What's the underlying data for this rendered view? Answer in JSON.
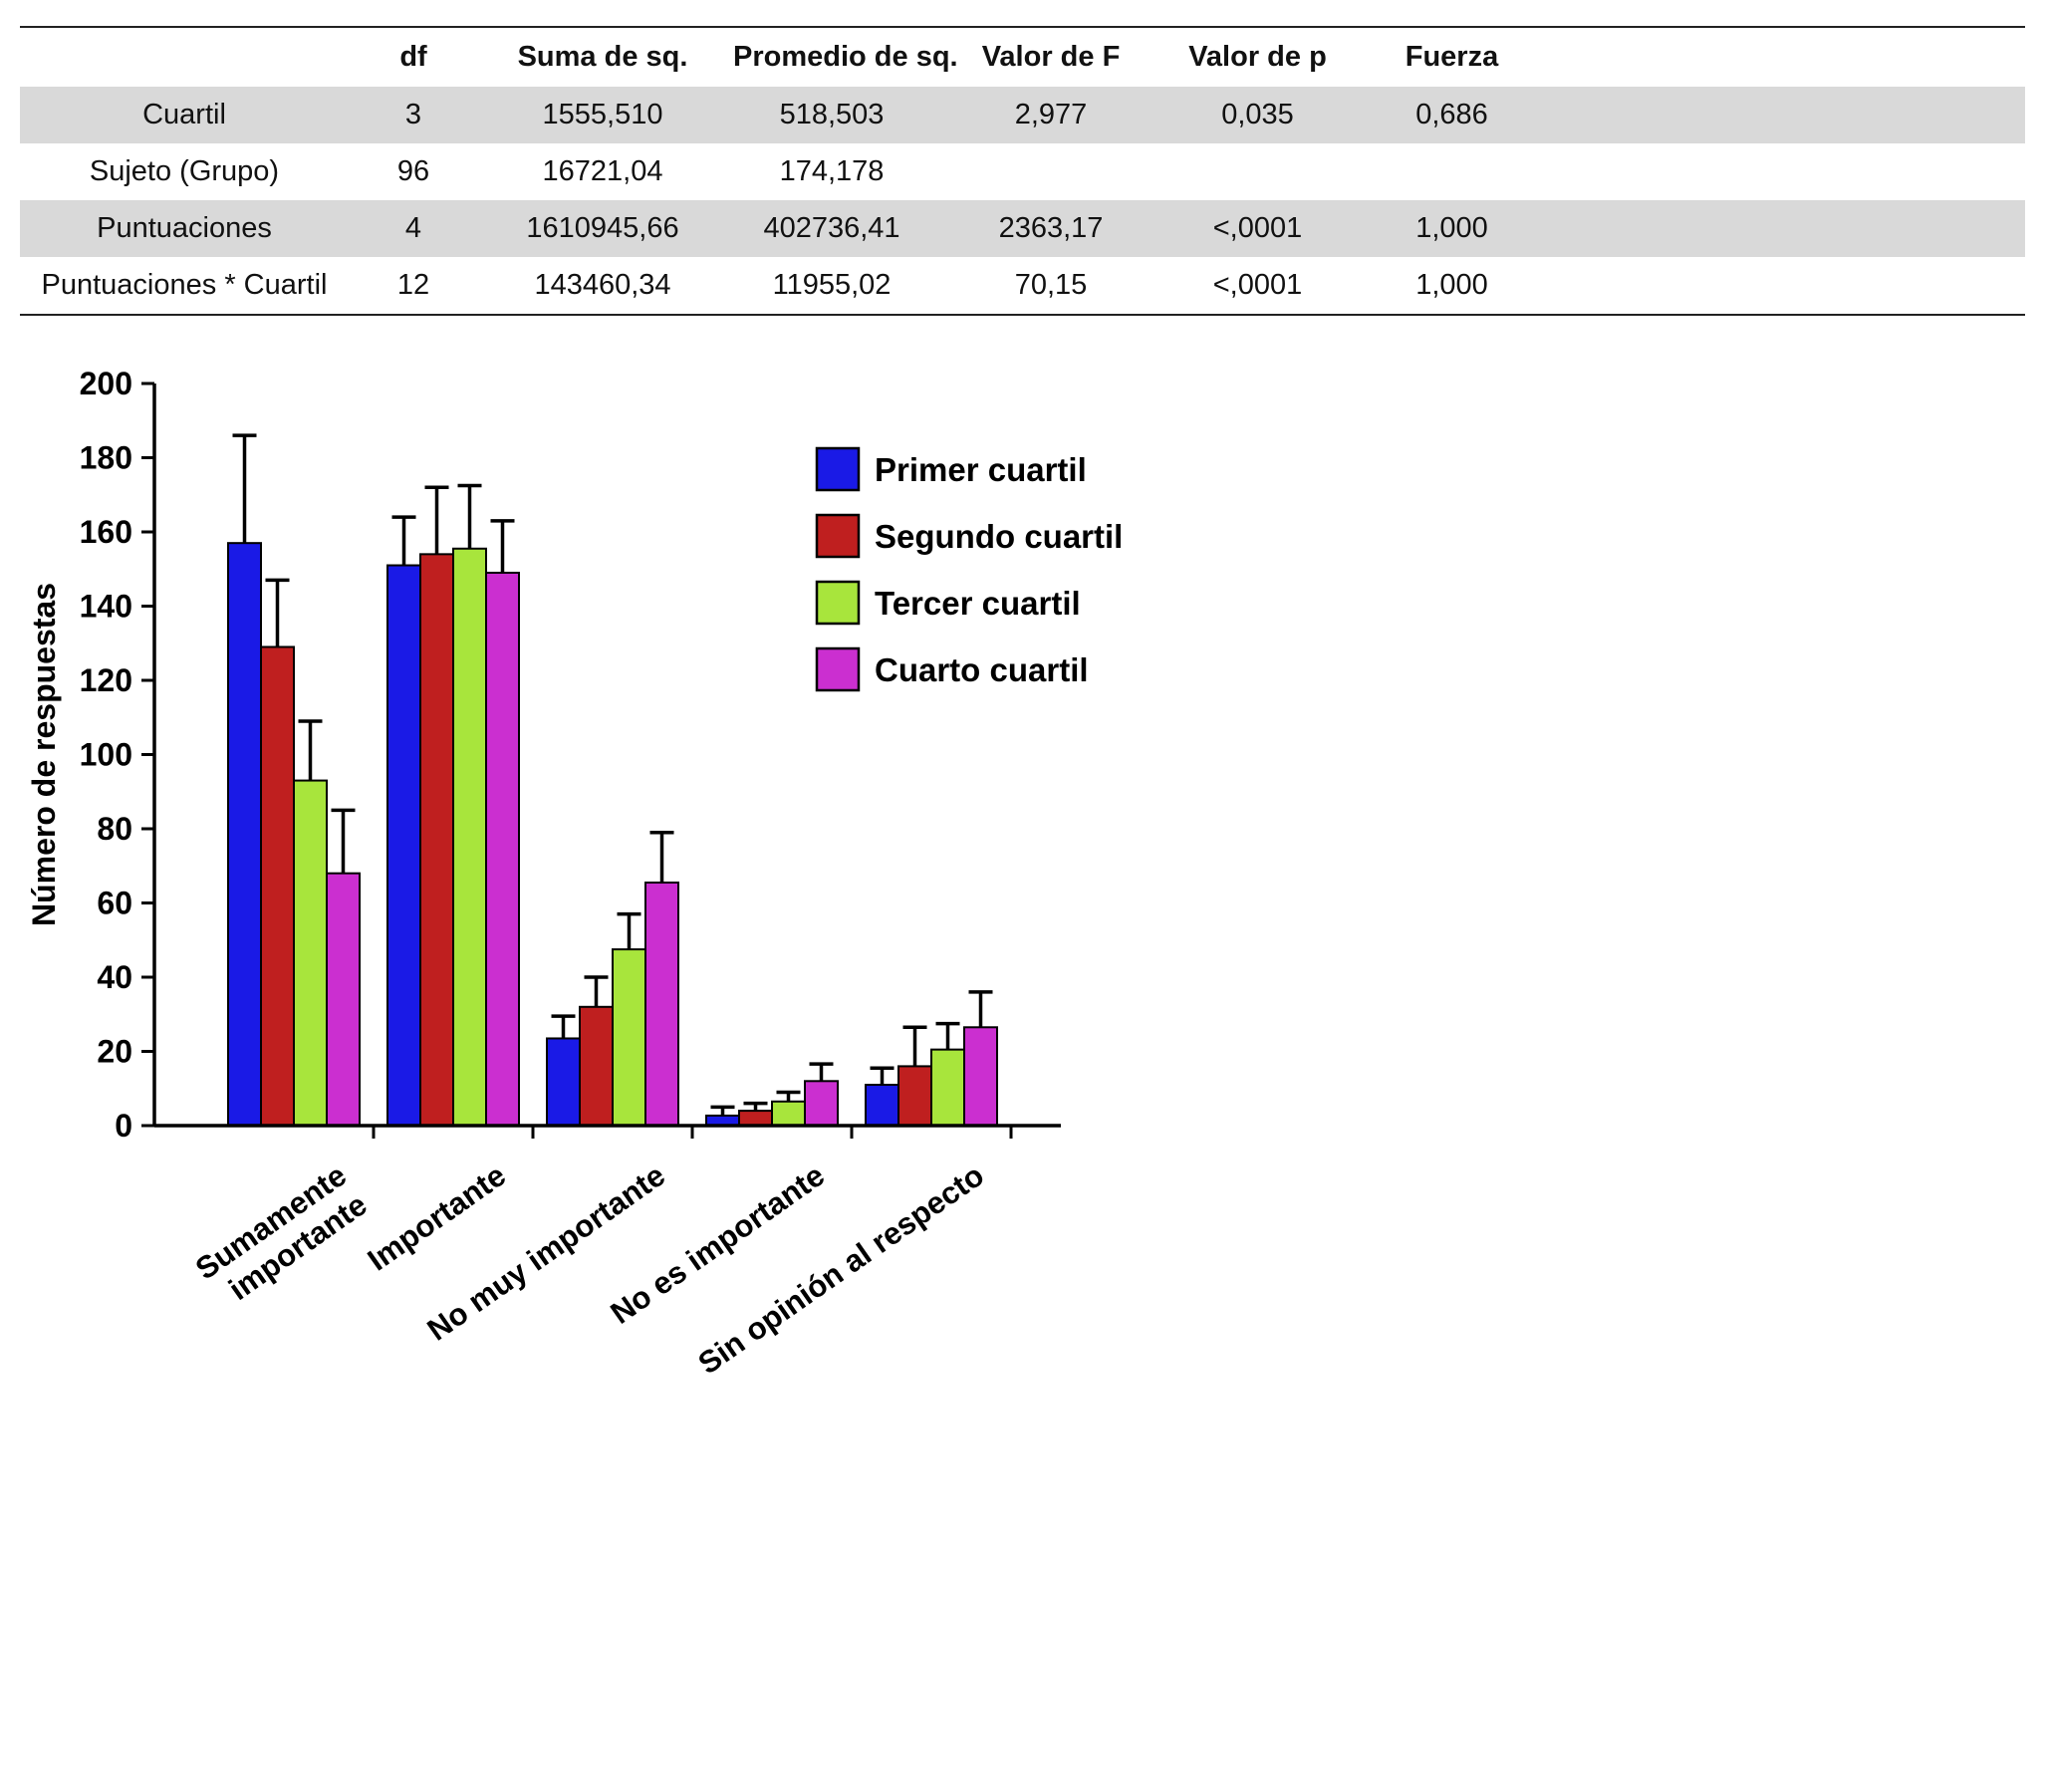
{
  "table": {
    "headers": [
      "",
      "df",
      "Suma de sq.",
      "Promedio de sq.",
      "Valor de F",
      "Valor de p",
      "Fuerza"
    ],
    "rows": [
      {
        "label": "Cuartil",
        "values": [
          "3",
          "1555,510",
          "518,503",
          "2,977",
          "0,035",
          "0,686"
        ],
        "shaded": true
      },
      {
        "label": "Sujeto (Grupo)",
        "values": [
          "96",
          "16721,04",
          "174,178",
          "",
          "",
          ""
        ],
        "shaded": false
      },
      {
        "label": "Puntuaciones",
        "values": [
          "4",
          "1610945,66",
          "402736,41",
          "2363,17",
          "<,0001",
          "1,000"
        ],
        "shaded": true
      },
      {
        "label": "Puntuaciones * Cuartil",
        "values": [
          "12",
          "143460,34",
          "11955,02",
          "70,15",
          "<,0001",
          "1,000"
        ],
        "shaded": false
      }
    ],
    "shade_color": "#d9d9d9"
  },
  "chart_data": {
    "type": "bar",
    "title": "",
    "xlabel": "",
    "ylabel": "Número de respuestas",
    "ylim": [
      0,
      200
    ],
    "ytick_step": 20,
    "grid": false,
    "legend_position": "upper right inside",
    "categories": [
      "Sumamente\nimportante",
      "Importante",
      "No muy importante",
      "No es importante",
      "Sin opinión al respecto"
    ],
    "series": [
      {
        "name": "Primer cuartil",
        "color": "#1a1ae6",
        "values": [
          157,
          151,
          23.5,
          2.7,
          11
        ],
        "errors": [
          29,
          13,
          6,
          2.3,
          4.5
        ]
      },
      {
        "name": "Segundo cuartil",
        "color": "#bf1f1f",
        "values": [
          129,
          154,
          32,
          4,
          16
        ],
        "errors": [
          18,
          18,
          8,
          2,
          10.5
        ]
      },
      {
        "name": "Tercer cuartil",
        "color": "#a8e53c",
        "values": [
          93,
          155.5,
          47.5,
          6.5,
          20.5
        ],
        "errors": [
          16,
          17,
          9.5,
          2.5,
          7
        ]
      },
      {
        "name": "Cuarto cuartil",
        "color": "#cb2fd0",
        "values": [
          68,
          149,
          65.5,
          12,
          26.5
        ],
        "errors": [
          17,
          14,
          13.5,
          4.6,
          9.5
        ]
      }
    ]
  }
}
